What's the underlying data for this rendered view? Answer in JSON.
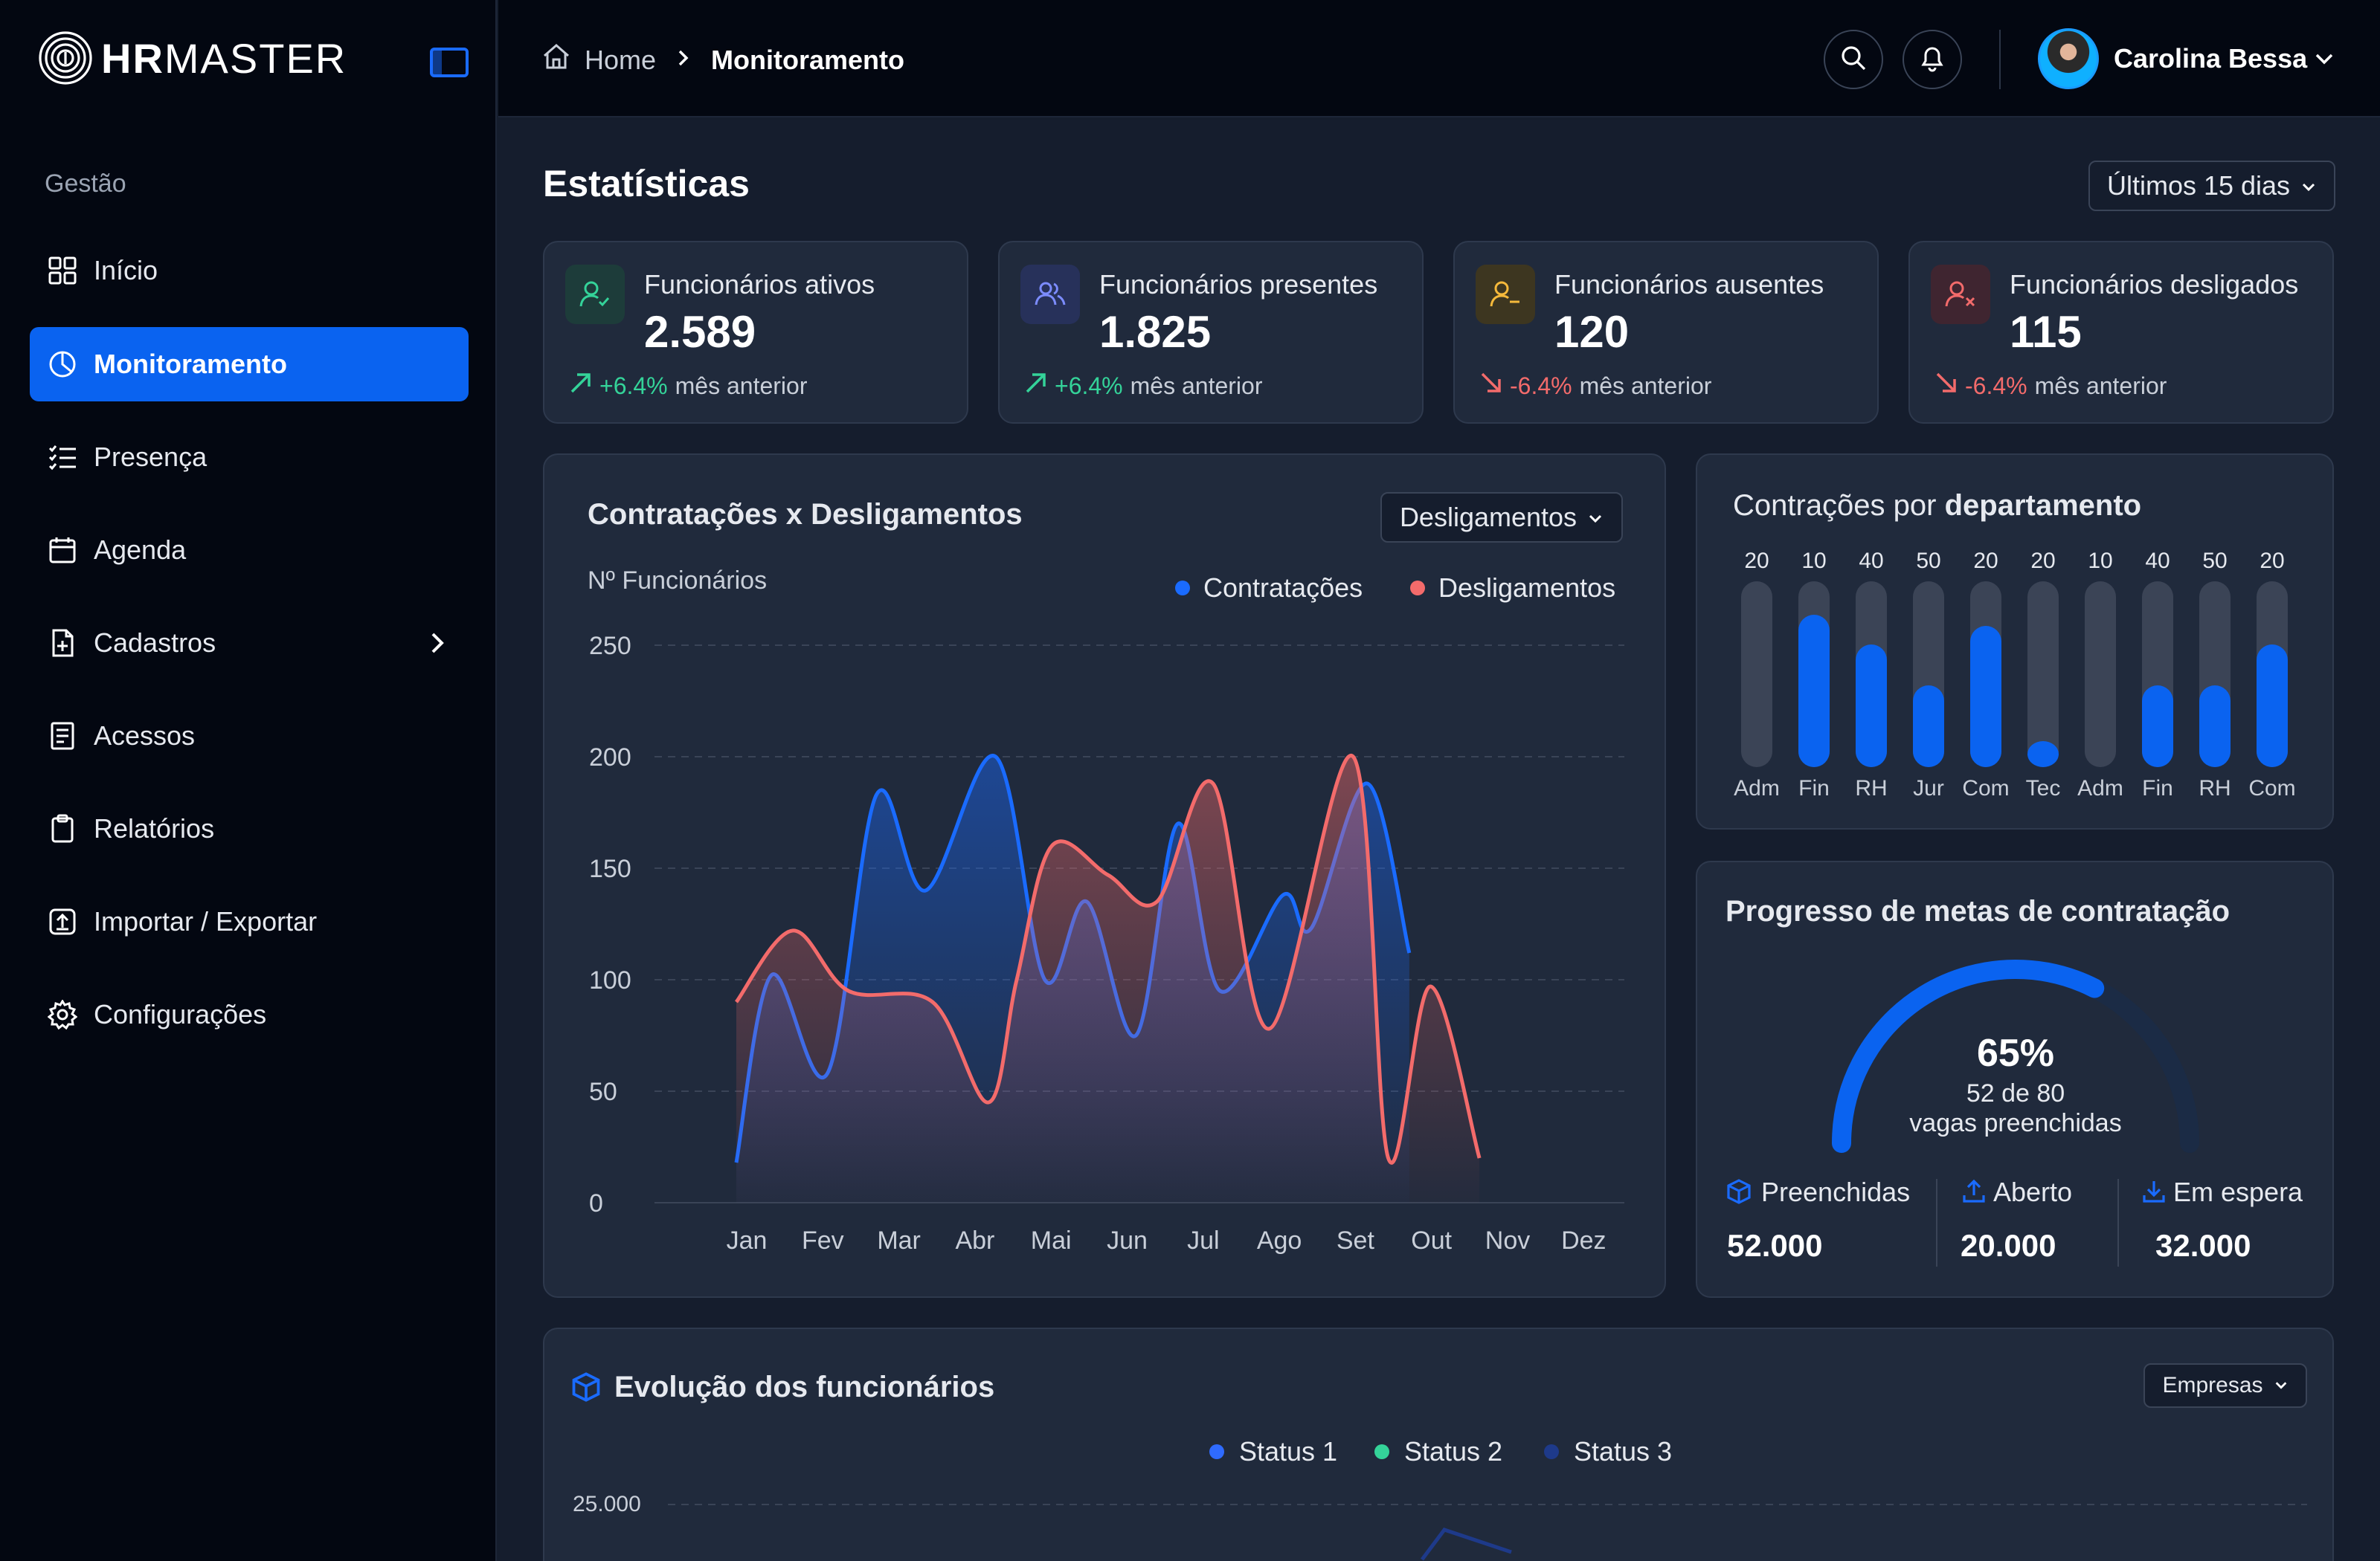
{
  "brand": {
    "name_bold": "HR",
    "name_light": "MASTER"
  },
  "sidebar": {
    "section_label": "Gestão",
    "items": [
      {
        "label": "Início",
        "icon": "grid-icon"
      },
      {
        "label": "Monitoramento",
        "icon": "pie-chart-icon"
      },
      {
        "label": "Presença",
        "icon": "list-check-icon"
      },
      {
        "label": "Agenda",
        "icon": "calendar-icon"
      },
      {
        "label": "Cadastros",
        "icon": "file-plus-icon"
      },
      {
        "label": "Acessos",
        "icon": "document-icon"
      },
      {
        "label": "Relatórios",
        "icon": "clipboard-icon"
      },
      {
        "label": "Importar / Exportar",
        "icon": "upload-box-icon"
      },
      {
        "label": "Configurações",
        "icon": "gear-icon"
      }
    ],
    "active_item": "Monitoramento"
  },
  "breadcrumb": {
    "home": "Home",
    "current": "Monitoramento"
  },
  "user": {
    "name": "Carolina Bessa"
  },
  "page": {
    "title": "Estatísticas",
    "period_select": "Últimos 15 dias"
  },
  "stats": [
    {
      "label": "Funcionários ativos",
      "value": "2.589",
      "trend": "+6.4%",
      "trend_label": "mês anterior",
      "direction": "up",
      "icon_color": "#34d399"
    },
    {
      "label": "Funcionários presentes",
      "value": "1.825",
      "trend": "+6.4%",
      "trend_label": "mês anterior",
      "direction": "up",
      "icon_color": "#7c8cff"
    },
    {
      "label": "Funcionários ausentes",
      "value": "120",
      "trend": "-6.4%",
      "trend_label": "mês anterior",
      "direction": "down",
      "icon_color": "#f5b93b"
    },
    {
      "label": "Funcionários desligados",
      "value": "115",
      "trend": "-6.4%",
      "trend_label": "mês anterior",
      "direction": "down",
      "icon_color": "#f36b6b"
    }
  ],
  "hires_chart": {
    "title": "Contratações x Desligamentos",
    "select": "Desligamentos",
    "ylabel": "Nº Funcionários",
    "legend": [
      "Contratações",
      "Desligamentos"
    ]
  },
  "dept_chart": {
    "title_prefix": "Contrações por ",
    "title_bold": "departamento"
  },
  "goals": {
    "title": "Progresso de metas de contratação",
    "percent_text": "65%",
    "sub1": "52 de 80",
    "sub2": "vagas preenchidas",
    "progress": 0.65,
    "items": [
      {
        "label": "Preenchidas",
        "value": "52.000",
        "icon": "cube-icon"
      },
      {
        "label": "Aberto",
        "value": "20.000",
        "icon": "upload-icon"
      },
      {
        "label": "Em espera",
        "value": "32.000",
        "icon": "download-icon"
      }
    ]
  },
  "evolution": {
    "title": "Evolução dos funcionários",
    "select": "Empresas",
    "legend": [
      "Status 1",
      "Status 2",
      "Status 3"
    ],
    "legend_colors": [
      "#2f6bff",
      "#34d399",
      "#1e3a8a"
    ],
    "ytick_top": "25.000"
  },
  "colors": {
    "accent": "#0a63f0",
    "hires": "#1a6bff",
    "layoffs": "#f36b6b"
  },
  "chart_data": [
    {
      "type": "area",
      "title": "Contratações x Desligamentos",
      "ylabel": "Nº Funcionários",
      "categories": [
        "Jan",
        "Fev",
        "Mar",
        "Abr",
        "Mai",
        "Jun",
        "Jul",
        "Ago",
        "Set",
        "Out",
        "Nov",
        "Dez"
      ],
      "yticks": [
        0,
        50,
        100,
        150,
        200,
        250
      ],
      "ylim": [
        0,
        250
      ],
      "legend_position": "top-right",
      "grid": true,
      "series": [
        {
          "name": "Contratações",
          "color": "#1a6bff",
          "points": [
            [
              0.0,
              18
            ],
            [
              0.5,
              102
            ],
            [
              1.3,
              58
            ],
            [
              2.0,
              183
            ],
            [
              2.7,
              140
            ],
            [
              3.7,
              200
            ],
            [
              4.4,
              100
            ],
            [
              5.0,
              135
            ],
            [
              5.7,
              75
            ],
            [
              6.3,
              170
            ],
            [
              6.9,
              95
            ],
            [
              7.8,
              138
            ],
            [
              8.2,
              123
            ],
            [
              9.0,
              188
            ],
            [
              9.6,
              112
            ]
          ]
        },
        {
          "name": "Desligamentos",
          "color": "#f36b6b",
          "points": [
            [
              0.0,
              90
            ],
            [
              0.8,
              122
            ],
            [
              1.6,
              95
            ],
            [
              2.8,
              90
            ],
            [
              3.6,
              45
            ],
            [
              4.0,
              100
            ],
            [
              4.5,
              160
            ],
            [
              5.3,
              147
            ],
            [
              6.0,
              135
            ],
            [
              6.8,
              188
            ],
            [
              7.6,
              78
            ],
            [
              8.8,
              200
            ],
            [
              9.3,
              20
            ],
            [
              9.9,
              97
            ],
            [
              10.6,
              20
            ]
          ]
        }
      ]
    },
    {
      "type": "bar",
      "title": "Contrações por departamento",
      "categories": [
        "Adm",
        "Fin",
        "RH",
        "Jur",
        "Com",
        "Tec",
        "Adm",
        "Fin",
        "RH",
        "Com"
      ],
      "values": [
        20,
        10,
        40,
        50,
        20,
        20,
        10,
        40,
        50,
        20
      ],
      "fill_fraction": [
        0.0,
        0.82,
        0.66,
        0.44,
        0.76,
        0.14,
        0.0,
        0.44,
        0.44,
        0.66
      ]
    }
  ]
}
